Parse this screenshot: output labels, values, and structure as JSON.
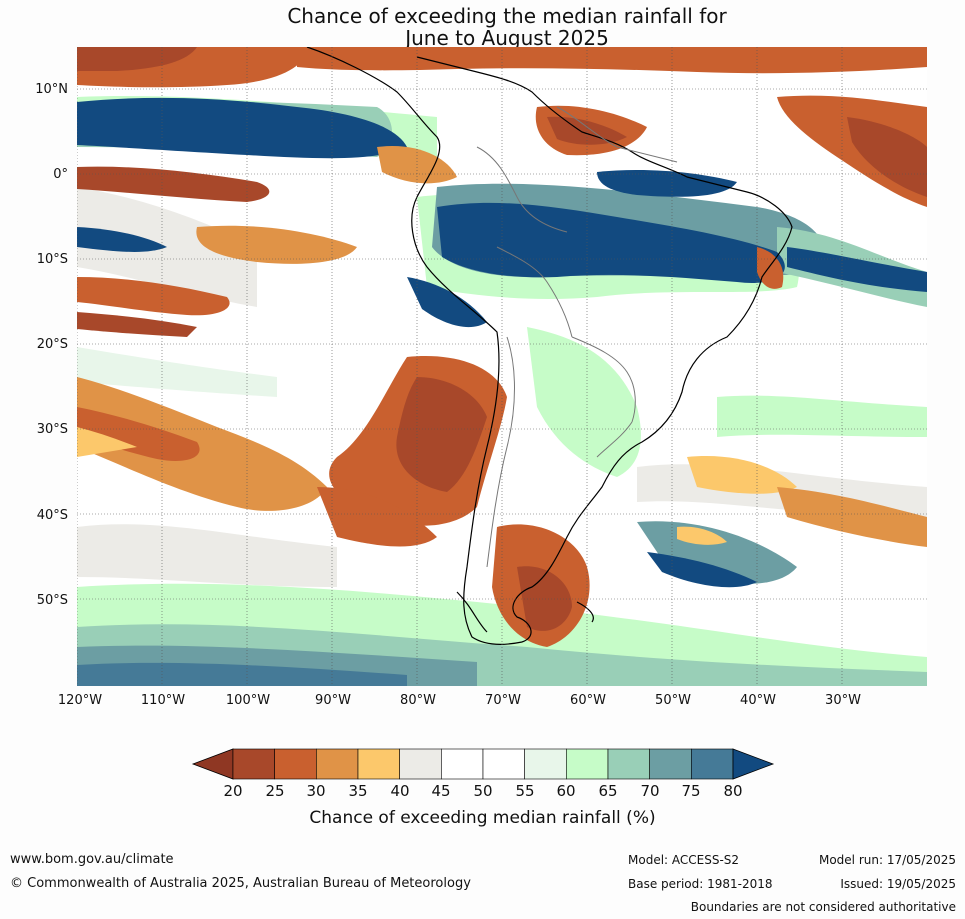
{
  "title_line1": "Chance of exceeding the median rainfall for",
  "title_line2": "June to August 2025",
  "lat_labels": [
    "10°N",
    "0°",
    "10°S",
    "20°S",
    "30°S",
    "40°S",
    "50°S"
  ],
  "lon_labels": [
    "120°W",
    "110°W",
    "100°W",
    "90°W",
    "80°W",
    "70°W",
    "60°W",
    "50°W",
    "40°W",
    "30°W"
  ],
  "colorbar": {
    "ticks": [
      "20",
      "25",
      "30",
      "35",
      "40",
      "45",
      "50",
      "55",
      "60",
      "65",
      "70",
      "75",
      "80"
    ],
    "low_color": "#8f3723",
    "high_color": "#124a80",
    "colors": [
      "#a8482a",
      "#c9602f",
      "#e09347",
      "#fcc86b",
      "#ecebe7",
      "#ffffff",
      "#ffffff",
      "#e8f6ea",
      "#c6fcc8",
      "#99cfb7",
      "#6c9ea3",
      "#457a97"
    ],
    "title": "Chance of exceeding median rainfall (%)"
  },
  "footer": {
    "url": "www.bom.gov.au/climate",
    "copyright": "© Commonwealth of Australia 2025, Australian Bureau of Meteorology",
    "model": "Model: ACCESS-S2",
    "base_period": "Base period: 1981-2018",
    "model_run": "Model run: 17/05/2025",
    "issued": "Issued: 19/05/2025",
    "disclaimer": "Boundaries are not considered authoritative"
  }
}
